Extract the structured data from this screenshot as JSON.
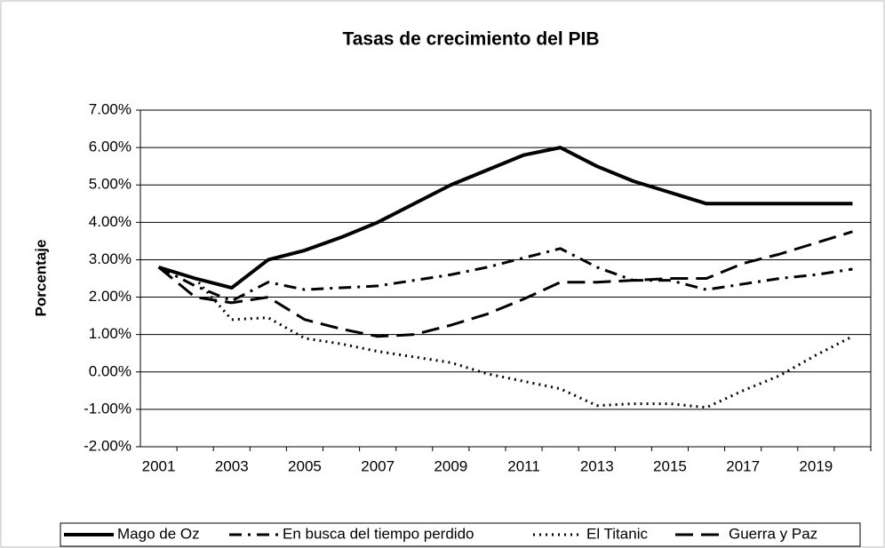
{
  "chart_data": {
    "type": "line",
    "title": "Tasas de crecimiento del PIB",
    "y_label": "Porcentaje",
    "categories": [
      "2001",
      null,
      "2003",
      null,
      "2005",
      null,
      "2007",
      null,
      "2009",
      null,
      "2011",
      null,
      "2013",
      null,
      "2015",
      null,
      "2017",
      null,
      "2019",
      null
    ],
    "series": [
      {
        "name": "Mago de Oz",
        "color": "#000000",
        "dash": "solid",
        "values": [
          2.8,
          2.5,
          2.25,
          3.0,
          3.25,
          3.6,
          4.0,
          4.5,
          5.0,
          5.4,
          5.8,
          6.0,
          5.5,
          5.1,
          4.8,
          4.5,
          4.5,
          4.5,
          4.5,
          4.5
        ]
      },
      {
        "name": "En busca del tiempo perdido",
        "color": "#000000",
        "dash": "dashdot",
        "values": [
          2.8,
          2.3,
          1.9,
          2.4,
          2.2,
          2.25,
          2.3,
          2.45,
          2.6,
          2.8,
          3.05,
          3.3,
          2.8,
          2.45,
          2.45,
          2.2,
          2.35,
          2.5,
          2.6,
          2.75
        ]
      },
      {
        "name": "El Titanic",
        "color": "#000000",
        "dash": "dotted",
        "values": [
          2.8,
          2.5,
          1.4,
          1.45,
          0.9,
          0.75,
          0.55,
          0.4,
          0.25,
          -0.05,
          -0.25,
          -0.45,
          -0.9,
          -0.85,
          -0.85,
          -0.95,
          -0.5,
          -0.1,
          0.45,
          0.95
        ]
      },
      {
        "name": "Guerra y Paz",
        "color": "#000000",
        "dash": "dashed",
        "values": [
          2.8,
          2.0,
          1.85,
          2.0,
          1.4,
          1.15,
          0.95,
          1.0,
          1.25,
          1.55,
          1.95,
          2.4,
          2.4,
          2.45,
          2.5,
          2.5,
          2.9,
          3.15,
          3.45,
          3.75
        ]
      }
    ],
    "ylim": [
      -2,
      7
    ],
    "yticks": [
      {
        "value": -2,
        "label": "-2.00%"
      },
      {
        "value": -1,
        "label": "-1.00%"
      },
      {
        "value": 0,
        "label": "0.00%"
      },
      {
        "value": 1,
        "label": "1.00%"
      },
      {
        "value": 2,
        "label": "2.00%"
      },
      {
        "value": 3,
        "label": "3.00%"
      },
      {
        "value": 4,
        "label": "4.00%"
      },
      {
        "value": 5,
        "label": "5.00%"
      },
      {
        "value": 6,
        "label": "6.00%"
      },
      {
        "value": 7,
        "label": "7.00%"
      }
    ],
    "grid": true,
    "legend": "bottom"
  }
}
